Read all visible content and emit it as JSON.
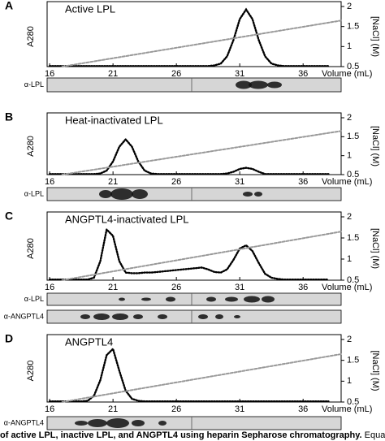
{
  "chart_data": [
    {
      "type": "line",
      "panel": "A",
      "title": "Active LPL",
      "x_label": "Volume (mL)",
      "y_label": "A280",
      "y2_label": "[NaCl] (M)",
      "xlim": [
        15.8,
        39
      ],
      "xticks": [
        16,
        21,
        26,
        31,
        36
      ],
      "ylim": [
        0,
        1
      ],
      "y2lim": [
        0.5,
        2
      ],
      "y2ticks": [
        0.5,
        1,
        1.5,
        2
      ],
      "x": [
        16,
        16.5,
        17,
        17.5,
        18,
        18.5,
        19,
        19.5,
        20,
        20.5,
        21,
        21.5,
        22,
        22.5,
        23,
        23.5,
        24,
        24.5,
        25,
        25.5,
        26,
        26.5,
        27,
        27.5,
        28,
        28.5,
        29,
        29.5,
        30,
        30.5,
        31,
        31.5,
        32,
        32.5,
        33,
        33.5,
        34,
        34.5,
        35,
        35.5,
        36,
        36.5,
        37,
        37.5,
        38
      ],
      "series": [
        {
          "color": "#000000",
          "values": [
            0.01,
            0.01,
            0.01,
            0.01,
            0.01,
            0.01,
            0.01,
            0.01,
            0.01,
            0.01,
            0.01,
            0.01,
            0.01,
            0.01,
            0.01,
            0.01,
            0.01,
            0.01,
            0.01,
            0.01,
            0.01,
            0.01,
            0.01,
            0.01,
            0.01,
            0.01,
            0.02,
            0.05,
            0.17,
            0.44,
            0.79,
            0.95,
            0.79,
            0.44,
            0.17,
            0.05,
            0.02,
            0.01,
            0.01,
            0.01,
            0.01,
            0.01,
            0.01,
            0.01,
            0.01
          ]
        },
        {
          "color": "#999999",
          "axis": "y2",
          "x": [
            17,
            39
          ],
          "values": [
            0.5,
            1.65
          ]
        }
      ],
      "blots": [
        {
          "label": "α-LPL"
        }
      ]
    },
    {
      "type": "line",
      "panel": "B",
      "title": "Heat-inactivated LPL",
      "x_label": "Volume (mL)",
      "y_label": "A280",
      "y2_label": "[NaCl] (M)",
      "xlim": [
        15.8,
        39
      ],
      "xticks": [
        16,
        21,
        26,
        31,
        36
      ],
      "ylim": [
        0,
        1
      ],
      "y2lim": [
        0.5,
        2
      ],
      "y2ticks": [
        0.5,
        1,
        1.5,
        2
      ],
      "x": [
        16,
        16.5,
        17,
        17.5,
        18,
        18.5,
        19,
        19.5,
        20,
        20.5,
        21,
        21.5,
        22,
        22.5,
        23,
        23.5,
        24,
        24.5,
        25,
        25.5,
        26,
        26.5,
        27,
        27.5,
        28,
        28.5,
        29,
        29.5,
        30,
        30.5,
        31,
        31.5,
        32,
        32.5,
        33,
        33.5,
        34,
        34.5,
        35,
        35.5,
        36,
        36.5,
        37,
        37.5,
        38
      ],
      "series": [
        {
          "color": "#000000",
          "values": [
            0.01,
            0.01,
            0.01,
            0.01,
            0.01,
            0.01,
            0.01,
            0.01,
            0.02,
            0.07,
            0.23,
            0.49,
            0.62,
            0.49,
            0.23,
            0.07,
            0.02,
            0.01,
            0.01,
            0.01,
            0.01,
            0.01,
            0.01,
            0.01,
            0.01,
            0.01,
            0.01,
            0.01,
            0.02,
            0.05,
            0.1,
            0.12,
            0.1,
            0.05,
            0.01,
            0.01,
            0.01,
            0.01,
            0.01,
            0.01,
            0.01,
            0.01,
            0.01,
            0.01,
            0.01
          ]
        },
        {
          "color": "#999999",
          "axis": "y2",
          "x": [
            17,
            39
          ],
          "values": [
            0.5,
            1.65
          ]
        }
      ],
      "blots": [
        {
          "label": "α-LPL"
        }
      ]
    },
    {
      "type": "line",
      "panel": "C",
      "title": "ANGPTL4-inactivated LPL",
      "x_label": "Volume (mL)",
      "y_label": "A280",
      "y2_label": "[NaCl] (M)",
      "xlim": [
        15.8,
        39
      ],
      "xticks": [
        16,
        21,
        26,
        31,
        36
      ],
      "ylim": [
        0,
        1
      ],
      "y2lim": [
        0.5,
        2
      ],
      "y2ticks": [
        0.5,
        1,
        1.5,
        2
      ],
      "x": [
        16,
        16.5,
        17,
        17.5,
        18,
        18.5,
        19,
        19.5,
        20,
        20.5,
        21,
        21.5,
        22,
        22.5,
        23,
        23.5,
        24,
        24.5,
        25,
        25.5,
        26,
        26.5,
        27,
        27.5,
        28,
        28.5,
        29,
        29.5,
        30,
        30.5,
        31,
        31.5,
        32,
        32.5,
        33,
        33.5,
        34,
        34.5,
        35,
        35.5,
        36,
        36.5,
        37,
        37.5,
        38
      ],
      "series": [
        {
          "color": "#000000",
          "values": [
            0.01,
            0.01,
            0.01,
            0.01,
            0.01,
            0.01,
            0.01,
            0.04,
            0.3,
            0.8,
            0.7,
            0.3,
            0.12,
            0.11,
            0.11,
            0.12,
            0.12,
            0.13,
            0.14,
            0.15,
            0.16,
            0.17,
            0.18,
            0.19,
            0.2,
            0.17,
            0.13,
            0.12,
            0.17,
            0.32,
            0.5,
            0.55,
            0.46,
            0.27,
            0.1,
            0.04,
            0.02,
            0.01,
            0.01,
            0.01,
            0.01,
            0.01,
            0.01,
            0.01,
            0.01
          ]
        },
        {
          "color": "#999999",
          "axis": "y2",
          "x": [
            17,
            39
          ],
          "values": [
            0.5,
            1.65
          ]
        }
      ],
      "blots": [
        {
          "label": "α-LPL"
        },
        {
          "label": "α-ANGPTL4"
        }
      ]
    },
    {
      "type": "line",
      "panel": "D",
      "title": "ANGPTL4",
      "x_label": "Volume (mL)",
      "y_label": "A280",
      "y2_label": "[NaCl] (M)",
      "xlim": [
        15.8,
        39
      ],
      "xticks": [
        16,
        21,
        26,
        31,
        36
      ],
      "ylim": [
        0,
        1
      ],
      "y2lim": [
        0.5,
        2
      ],
      "y2ticks": [
        0.5,
        1,
        1.5,
        2
      ],
      "x": [
        16,
        16.5,
        17,
        17.5,
        18,
        18.5,
        19,
        19.5,
        20,
        20.5,
        21,
        21.5,
        22,
        22.5,
        23,
        23.5,
        24,
        24.5,
        25,
        25.5,
        26,
        26.5,
        27,
        27.5,
        28,
        28.5,
        29,
        29.5,
        30,
        30.5,
        31,
        31.5,
        32,
        32.5,
        33,
        33.5,
        34,
        34.5,
        35,
        35.5,
        36,
        36.5,
        37,
        37.5,
        38
      ],
      "series": [
        {
          "color": "#000000",
          "values": [
            0.01,
            0.01,
            0.01,
            0.01,
            0.01,
            0.01,
            0.02,
            0.1,
            0.35,
            0.75,
            0.85,
            0.5,
            0.18,
            0.05,
            0.02,
            0.01,
            0.01,
            0.01,
            0.01,
            0.01,
            0.01,
            0.01,
            0.01,
            0.01,
            0.01,
            0.01,
            0.01,
            0.01,
            0.01,
            0.01,
            0.01,
            0.01,
            0.01,
            0.01,
            0.01,
            0.01,
            0.01,
            0.01,
            0.01,
            0.01,
            0.01,
            0.01,
            0.01,
            0.01,
            0.01
          ]
        },
        {
          "color": "#999999",
          "axis": "y2",
          "x": [
            17,
            39
          ],
          "values": [
            0.5,
            1.65
          ]
        }
      ],
      "blots": [
        {
          "label": "α-ANGPTL4"
        }
      ]
    }
  ],
  "caption": {
    "bold": "of active LPL, inactive LPL, and ANGPTL4 using heparin Sepharose chromatography.",
    "rest": " Equal amounts"
  }
}
